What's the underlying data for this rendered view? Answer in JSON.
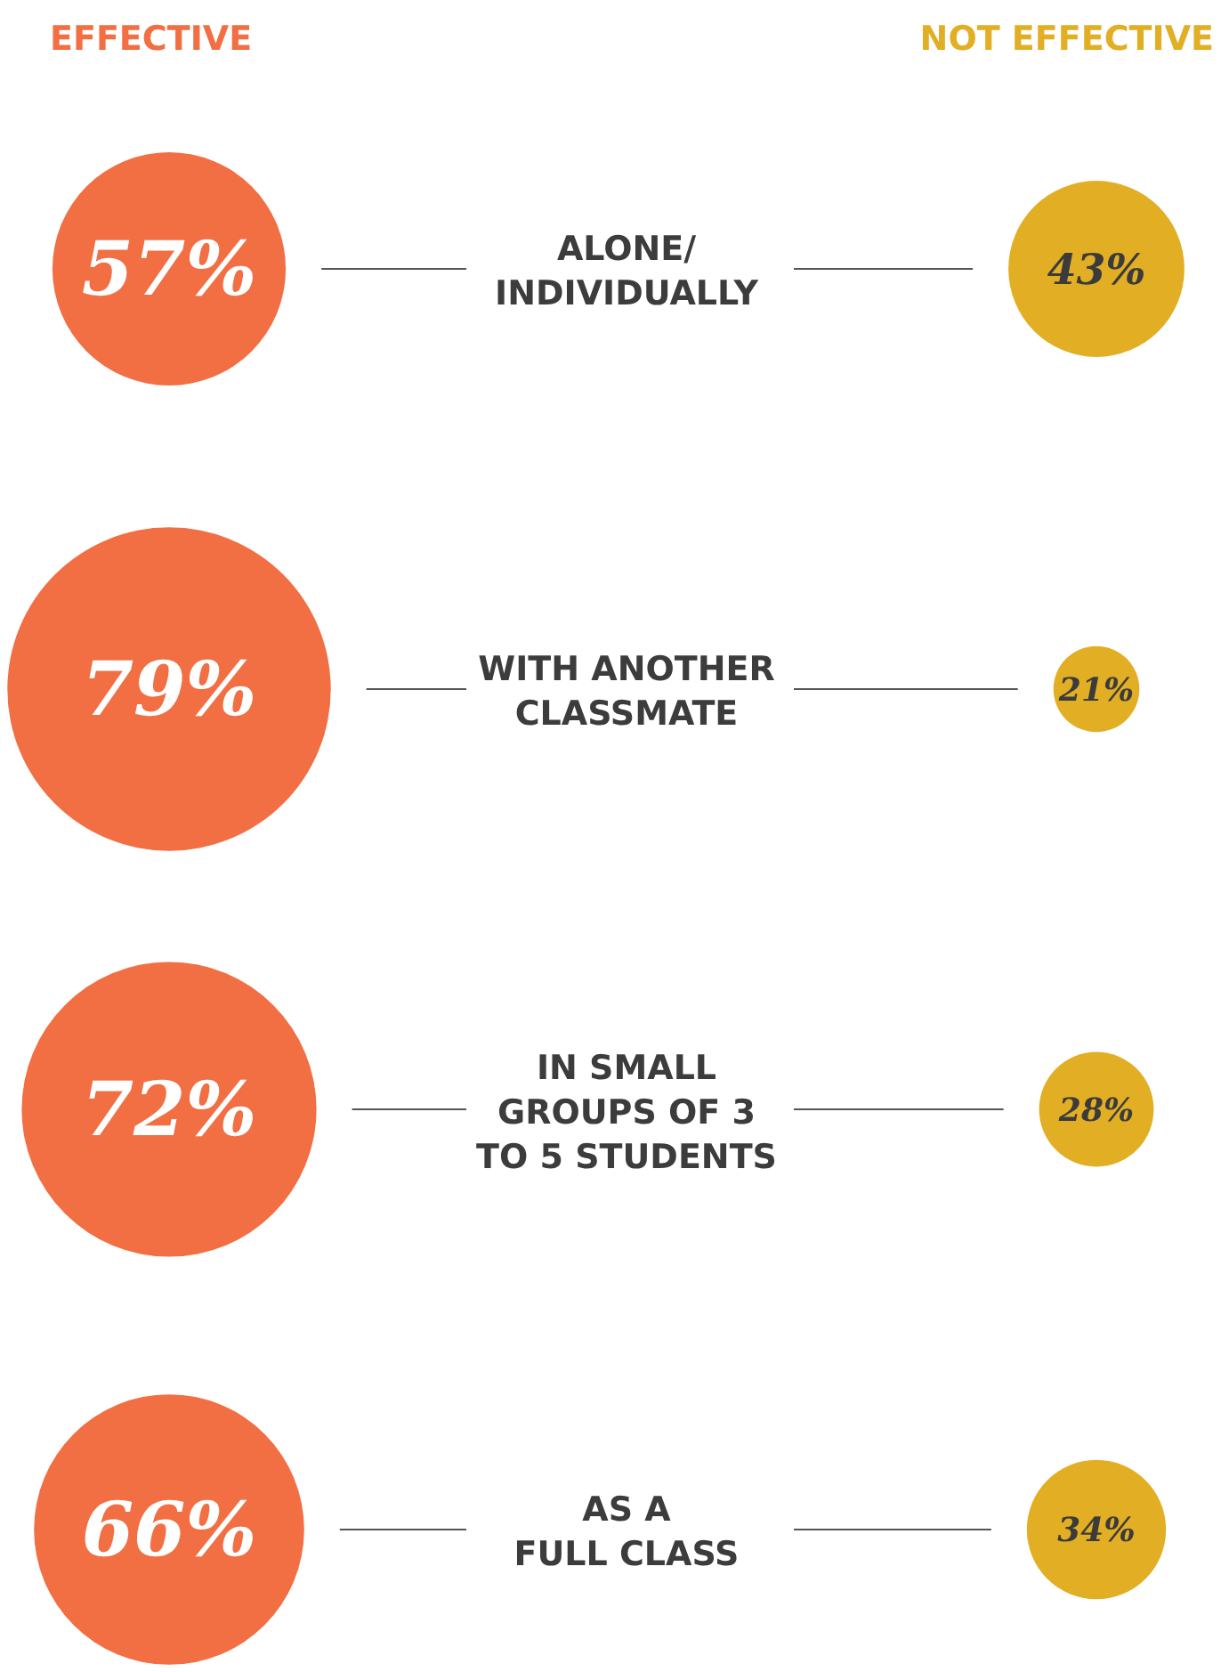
{
  "chart_data": {
    "type": "other",
    "categories": [
      "ALONE/\nINDIVIDUALLY",
      "WITH ANOTHER\nCLASSMATE",
      "IN SMALL\nGROUPS OF 3\nTO 5 STUDENTS",
      "AS A\nFULL CLASS"
    ],
    "series": [
      {
        "name": "EFFECTIVE",
        "color": "#f26e43",
        "values": [
          57,
          79,
          72,
          66
        ],
        "value_labels": [
          "57%",
          "79%",
          "72%",
          "66%"
        ]
      },
      {
        "name": "NOT EFFECTIVE",
        "color": "#e2ae24",
        "values": [
          43,
          21,
          28,
          34
        ],
        "value_labels": [
          "43%",
          "21%",
          "28%",
          "34%"
        ]
      }
    ]
  }
}
